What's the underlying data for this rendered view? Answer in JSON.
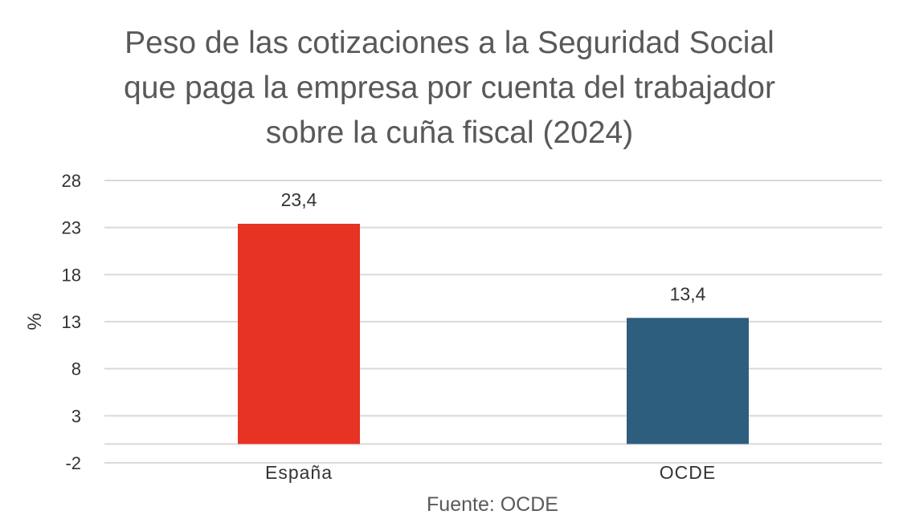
{
  "chart_data": {
    "type": "bar",
    "title_lines": [
      "Peso de las cotizaciones a la Seguridad Social",
      "que paga la empresa por cuenta del trabajador",
      "sobre la cuña fiscal (2024)"
    ],
    "categories": [
      "España",
      "OCDE"
    ],
    "values": [
      23.4,
      13.4
    ],
    "data_labels": [
      "23,4",
      "13,4"
    ],
    "colors": [
      "#e63323",
      "#2e5e7e"
    ],
    "ylabel": "%",
    "ylim": [
      -2,
      28
    ],
    "yticks": [
      28,
      23,
      18,
      13,
      8,
      3,
      -2
    ],
    "grid": true,
    "gridline_color": "#d9d9d9",
    "source": "Fuente: OCDE"
  }
}
